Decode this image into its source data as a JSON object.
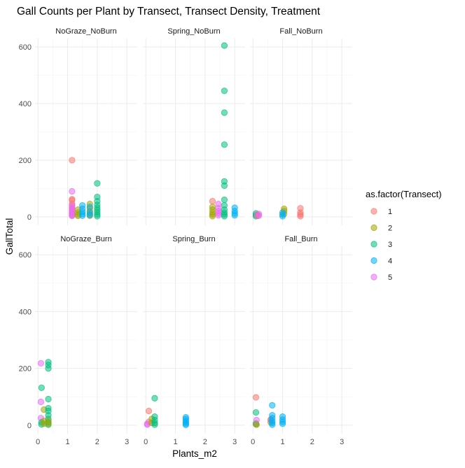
{
  "chart_data": {
    "type": "scatter",
    "title": "Gall Counts per Plant by Transect, Transect Density, Treatment",
    "xlabel": "Plants_m2",
    "ylabel": "GallTotal",
    "x_ticks": [
      0,
      1,
      2,
      3
    ],
    "y_ticks": [
      0,
      200,
      400,
      600
    ],
    "xlim": [
      -0.1,
      3.35
    ],
    "ylim": [
      -30,
      630
    ],
    "grid": true,
    "legend": {
      "title": "as.factor(Transect)",
      "position": "right",
      "entries": [
        "1",
        "2",
        "3",
        "4",
        "5"
      ],
      "colors": [
        "#F8766D",
        "#A3A500",
        "#00BF7D",
        "#00B0F6",
        "#E76BF3"
      ]
    },
    "panels": [
      {
        "name": "NoGraze_NoBurn",
        "points": [
          {
            "x": 1.15,
            "y": 200,
            "t": 1
          },
          {
            "x": 1.15,
            "y": 62,
            "t": 1
          },
          {
            "x": 1.15,
            "y": 58,
            "t": 1
          },
          {
            "x": 1.15,
            "y": 45,
            "t": 1
          },
          {
            "x": 1.15,
            "y": 35,
            "t": 1
          },
          {
            "x": 1.15,
            "y": 28,
            "t": 1
          },
          {
            "x": 1.15,
            "y": 20,
            "t": 1
          },
          {
            "x": 1.15,
            "y": 12,
            "t": 1
          },
          {
            "x": 1.15,
            "y": 5,
            "t": 1
          },
          {
            "x": 1.15,
            "y": 90,
            "t": 5
          },
          {
            "x": 1.15,
            "y": 40,
            "t": 5
          },
          {
            "x": 1.15,
            "y": 30,
            "t": 5
          },
          {
            "x": 1.15,
            "y": 22,
            "t": 5
          },
          {
            "x": 1.15,
            "y": 15,
            "t": 5
          },
          {
            "x": 1.15,
            "y": 8,
            "t": 5
          },
          {
            "x": 1.15,
            "y": 3,
            "t": 5
          },
          {
            "x": 1.35,
            "y": 25,
            "t": 2
          },
          {
            "x": 1.35,
            "y": 15,
            "t": 2
          },
          {
            "x": 1.35,
            "y": 8,
            "t": 2
          },
          {
            "x": 1.35,
            "y": 3,
            "t": 2
          },
          {
            "x": 1.5,
            "y": 40,
            "t": 4
          },
          {
            "x": 1.5,
            "y": 28,
            "t": 4
          },
          {
            "x": 1.5,
            "y": 18,
            "t": 4
          },
          {
            "x": 1.5,
            "y": 10,
            "t": 4
          },
          {
            "x": 1.5,
            "y": 4,
            "t": 4
          },
          {
            "x": 1.75,
            "y": 45,
            "t": 2
          },
          {
            "x": 1.75,
            "y": 30,
            "t": 2
          },
          {
            "x": 1.75,
            "y": 20,
            "t": 2
          },
          {
            "x": 1.75,
            "y": 10,
            "t": 2
          },
          {
            "x": 1.75,
            "y": 4,
            "t": 2
          },
          {
            "x": 1.75,
            "y": 35,
            "t": 4
          },
          {
            "x": 1.75,
            "y": 15,
            "t": 4
          },
          {
            "x": 1.75,
            "y": 6,
            "t": 4
          },
          {
            "x": 2.0,
            "y": 118,
            "t": 3
          },
          {
            "x": 2.0,
            "y": 70,
            "t": 3
          },
          {
            "x": 2.0,
            "y": 55,
            "t": 3
          },
          {
            "x": 2.0,
            "y": 42,
            "t": 3
          },
          {
            "x": 2.0,
            "y": 32,
            "t": 3
          },
          {
            "x": 2.0,
            "y": 24,
            "t": 3
          },
          {
            "x": 2.0,
            "y": 16,
            "t": 3
          },
          {
            "x": 2.0,
            "y": 8,
            "t": 3
          },
          {
            "x": 2.0,
            "y": 2,
            "t": 3
          }
        ]
      },
      {
        "name": "Spring_NoBurn",
        "points": [
          {
            "x": 2.25,
            "y": 55,
            "t": 1
          },
          {
            "x": 2.25,
            "y": 35,
            "t": 2
          },
          {
            "x": 2.25,
            "y": 25,
            "t": 2
          },
          {
            "x": 2.25,
            "y": 15,
            "t": 2
          },
          {
            "x": 2.25,
            "y": 8,
            "t": 2
          },
          {
            "x": 2.25,
            "y": 2,
            "t": 2
          },
          {
            "x": 2.45,
            "y": 45,
            "t": 5
          },
          {
            "x": 2.45,
            "y": 30,
            "t": 5
          },
          {
            "x": 2.45,
            "y": 20,
            "t": 5
          },
          {
            "x": 2.45,
            "y": 12,
            "t": 5
          },
          {
            "x": 2.45,
            "y": 5,
            "t": 5
          },
          {
            "x": 2.65,
            "y": 605,
            "t": 3
          },
          {
            "x": 2.65,
            "y": 445,
            "t": 3
          },
          {
            "x": 2.65,
            "y": 368,
            "t": 3
          },
          {
            "x": 2.65,
            "y": 255,
            "t": 3
          },
          {
            "x": 2.65,
            "y": 125,
            "t": 3
          },
          {
            "x": 2.65,
            "y": 110,
            "t": 3
          },
          {
            "x": 2.65,
            "y": 60,
            "t": 3
          },
          {
            "x": 2.65,
            "y": 40,
            "t": 3
          },
          {
            "x": 2.65,
            "y": 25,
            "t": 3
          },
          {
            "x": 2.65,
            "y": 15,
            "t": 3
          },
          {
            "x": 2.65,
            "y": 8,
            "t": 3
          },
          {
            "x": 2.65,
            "y": 2,
            "t": 3
          },
          {
            "x": 3.0,
            "y": 32,
            "t": 4
          },
          {
            "x": 3.0,
            "y": 20,
            "t": 4
          },
          {
            "x": 3.0,
            "y": 12,
            "t": 4
          },
          {
            "x": 3.0,
            "y": 5,
            "t": 4
          }
        ]
      },
      {
        "name": "Fall_NoBurn",
        "points": [
          {
            "x": 0.1,
            "y": 12,
            "t": 3
          },
          {
            "x": 0.1,
            "y": 6,
            "t": 4
          },
          {
            "x": 0.1,
            "y": 2,
            "t": 3
          },
          {
            "x": 0.15,
            "y": 8,
            "t": 1
          },
          {
            "x": 0.15,
            "y": 3,
            "t": 1
          },
          {
            "x": 0.2,
            "y": 10,
            "t": 5
          },
          {
            "x": 0.2,
            "y": 4,
            "t": 5
          },
          {
            "x": 1.05,
            "y": 28,
            "t": 2
          },
          {
            "x": 1.05,
            "y": 20,
            "t": 2
          },
          {
            "x": 1.05,
            "y": 10,
            "t": 2
          },
          {
            "x": 1.0,
            "y": 15,
            "t": 4
          },
          {
            "x": 1.0,
            "y": 8,
            "t": 4
          },
          {
            "x": 1.0,
            "y": 2,
            "t": 4
          },
          {
            "x": 1.6,
            "y": 30,
            "t": 1
          },
          {
            "x": 1.6,
            "y": 15,
            "t": 1
          },
          {
            "x": 1.6,
            "y": 8,
            "t": 1
          },
          {
            "x": 1.6,
            "y": 2,
            "t": 1
          }
        ]
      },
      {
        "name": "NoGraze_Burn",
        "points": [
          {
            "x": 0.1,
            "y": 218,
            "t": 5
          },
          {
            "x": 0.1,
            "y": 82,
            "t": 5
          },
          {
            "x": 0.1,
            "y": 25,
            "t": 5
          },
          {
            "x": 0.12,
            "y": 132,
            "t": 3
          },
          {
            "x": 0.12,
            "y": 10,
            "t": 3
          },
          {
            "x": 0.12,
            "y": 3,
            "t": 3
          },
          {
            "x": 0.2,
            "y": 55,
            "t": 2
          },
          {
            "x": 0.2,
            "y": 15,
            "t": 2
          },
          {
            "x": 0.2,
            "y": 5,
            "t": 2
          },
          {
            "x": 0.35,
            "y": 222,
            "t": 3
          },
          {
            "x": 0.35,
            "y": 212,
            "t": 3
          },
          {
            "x": 0.35,
            "y": 200,
            "t": 3
          },
          {
            "x": 0.35,
            "y": 92,
            "t": 3
          },
          {
            "x": 0.35,
            "y": 60,
            "t": 3
          },
          {
            "x": 0.35,
            "y": 50,
            "t": 3
          },
          {
            "x": 0.35,
            "y": 35,
            "t": 3
          },
          {
            "x": 0.35,
            "y": 22,
            "t": 3
          },
          {
            "x": 0.35,
            "y": 10,
            "t": 3
          },
          {
            "x": 0.35,
            "y": 2,
            "t": 3
          },
          {
            "x": 0.35,
            "y": 15,
            "t": 2
          },
          {
            "x": 0.35,
            "y": 5,
            "t": 2
          }
        ]
      },
      {
        "name": "Spring_Burn",
        "points": [
          {
            "x": 0.1,
            "y": 50,
            "t": 1
          },
          {
            "x": 0.1,
            "y": 12,
            "t": 1
          },
          {
            "x": 0.05,
            "y": 5,
            "t": 5
          },
          {
            "x": 0.05,
            "y": 2,
            "t": 5
          },
          {
            "x": 0.2,
            "y": 22,
            "t": 2
          },
          {
            "x": 0.2,
            "y": 8,
            "t": 2
          },
          {
            "x": 0.3,
            "y": 95,
            "t": 3
          },
          {
            "x": 0.3,
            "y": 30,
            "t": 3
          },
          {
            "x": 0.3,
            "y": 18,
            "t": 3
          },
          {
            "x": 0.3,
            "y": 8,
            "t": 3
          },
          {
            "x": 0.3,
            "y": 2,
            "t": 3
          },
          {
            "x": 1.35,
            "y": 28,
            "t": 4
          },
          {
            "x": 1.35,
            "y": 22,
            "t": 4
          },
          {
            "x": 1.35,
            "y": 15,
            "t": 4
          },
          {
            "x": 1.35,
            "y": 10,
            "t": 4
          },
          {
            "x": 1.35,
            "y": 5,
            "t": 4
          },
          {
            "x": 1.35,
            "y": 1,
            "t": 4
          }
        ]
      },
      {
        "name": "Fall_Burn",
        "points": [
          {
            "x": 0.1,
            "y": 98,
            "t": 1
          },
          {
            "x": 0.1,
            "y": 3,
            "t": 1
          },
          {
            "x": 0.1,
            "y": 45,
            "t": 3
          },
          {
            "x": 0.1,
            "y": 6,
            "t": 3
          },
          {
            "x": 0.12,
            "y": 18,
            "t": 5
          },
          {
            "x": 0.12,
            "y": 2,
            "t": 2
          },
          {
            "x": 0.6,
            "y": 20,
            "t": 2
          },
          {
            "x": 0.6,
            "y": 10,
            "t": 2
          },
          {
            "x": 0.6,
            "y": 18,
            "t": 5
          },
          {
            "x": 0.65,
            "y": 70,
            "t": 4
          },
          {
            "x": 0.65,
            "y": 35,
            "t": 4
          },
          {
            "x": 0.65,
            "y": 25,
            "t": 4
          },
          {
            "x": 0.65,
            "y": 15,
            "t": 4
          },
          {
            "x": 0.65,
            "y": 8,
            "t": 4
          },
          {
            "x": 0.65,
            "y": 2,
            "t": 4
          },
          {
            "x": 1.0,
            "y": 30,
            "t": 4
          },
          {
            "x": 1.0,
            "y": 20,
            "t": 4
          },
          {
            "x": 1.0,
            "y": 12,
            "t": 4
          },
          {
            "x": 1.0,
            "y": 5,
            "t": 4
          }
        ]
      }
    ]
  }
}
